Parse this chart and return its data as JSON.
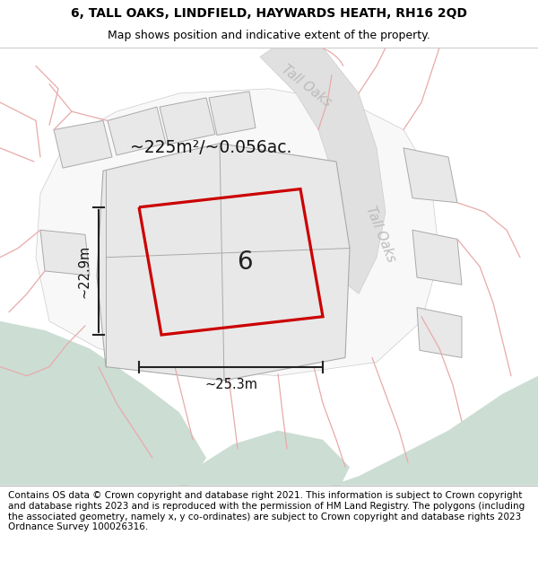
{
  "title_line1": "6, TALL OAKS, LINDFIELD, HAYWARDS HEATH, RH16 2QD",
  "title_line2": "Map shows position and indicative extent of the property.",
  "footer_text": "Contains OS data © Crown copyright and database right 2021. This information is subject to Crown copyright and database rights 2023 and is reproduced with the permission of HM Land Registry. The polygons (including the associated geometry, namely x, y co-ordinates) are subject to Crown copyright and database rights 2023 Ordnance Survey 100026316.",
  "area_label": "~225m²/~0.056ac.",
  "plot_number": "6",
  "dim_width": "~25.3m",
  "dim_height": "~22.9m",
  "road_label_top": "Tall Oaks",
  "road_label_right": "Tall Oaks",
  "bg_map_color": "#f0f0f0",
  "green_color": "#ccddd4",
  "parcel_fill": "#e8e8e8",
  "parcel_edge": "#aaaaaa",
  "road_fill": "#e0e0e0",
  "red_color": "#cc0000",
  "dim_color": "#222222",
  "pink_line_color": "#e8aaaa",
  "title_fontsize": 10,
  "subtitle_fontsize": 9,
  "footer_fontsize": 7.5
}
